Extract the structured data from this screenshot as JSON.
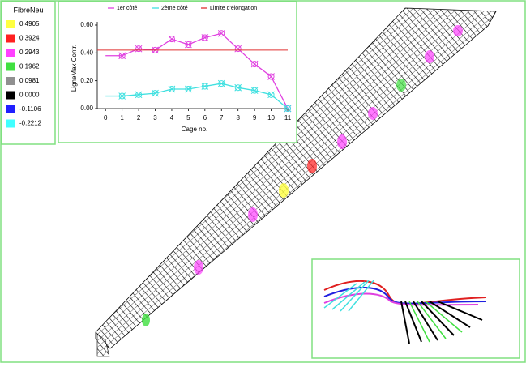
{
  "color_scale": {
    "title": "FibreNeu",
    "entries": [
      {
        "label": "0.4905",
        "color": "#ffff40"
      },
      {
        "label": "0.3924",
        "color": "#ff2020"
      },
      {
        "label": "0.2943",
        "color": "#ff40ff"
      },
      {
        "label": "0.1962",
        "color": "#40e040"
      },
      {
        "label": "0.0981",
        "color": "#909090"
      },
      {
        "label": "0.0000",
        "color": "#000000"
      },
      {
        "label": "-0.1106",
        "color": "#2020ff"
      },
      {
        "label": "-0.2212",
        "color": "#40ffff"
      }
    ]
  },
  "chart_data": {
    "type": "line",
    "x_label": "Cage no.",
    "y_label": "LigneMax Contr.",
    "x": [
      0,
      1,
      2,
      3,
      4,
      5,
      6,
      7,
      8,
      9,
      10,
      11
    ],
    "series": [
      {
        "name": "1er côté",
        "color": "#e040e0",
        "values": [
          0.38,
          0.38,
          0.43,
          0.42,
          0.5,
          0.46,
          0.51,
          0.54,
          0.43,
          0.32,
          0.23,
          0.0
        ]
      },
      {
        "name": "2ème côté",
        "color": "#40e0e0",
        "values": [
          0.09,
          0.09,
          0.1,
          0.11,
          0.14,
          0.14,
          0.16,
          0.18,
          0.15,
          0.13,
          0.1,
          0.0
        ]
      },
      {
        "name": "Limite d'élongation",
        "color": "#e03030",
        "value": 0.42
      }
    ],
    "xlim": [
      -0.5,
      11
    ],
    "ylim": [
      0,
      0.6
    ],
    "xticks": [
      0,
      1,
      2,
      3,
      4,
      5,
      6,
      7,
      8,
      9,
      10,
      11
    ],
    "yticks": [
      {
        "value": 0,
        "label": "0.00"
      },
      {
        "value": 0.2,
        "label": "0.20"
      },
      {
        "value": 0.4,
        "label": "0.40"
      },
      {
        "value": 0.6,
        "label": "0.60"
      }
    ]
  }
}
